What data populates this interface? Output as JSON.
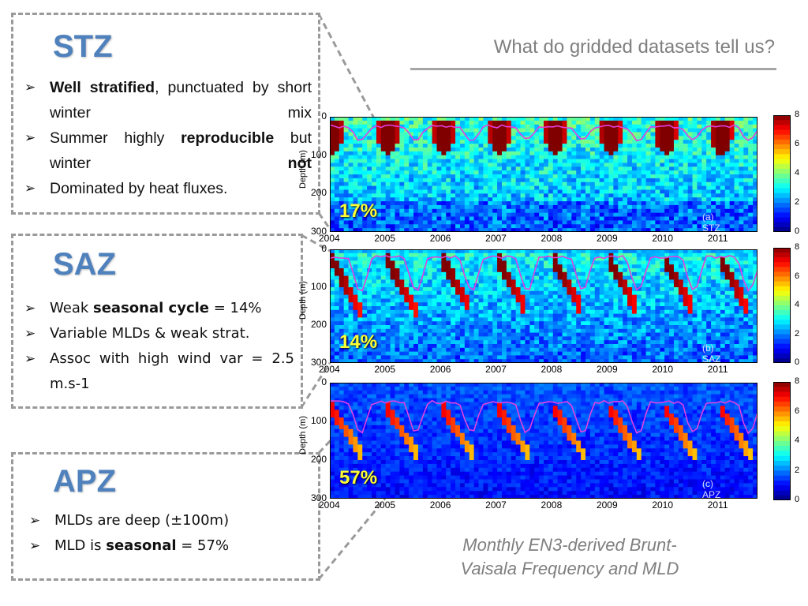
{
  "header": {
    "title": "What do gridded datasets tell us?"
  },
  "zones": [
    {
      "title": "STZ",
      "bullets": [
        {
          "parts": [
            {
              "text": "Well stratified",
              "bold": true
            },
            {
              "text": ", punctuated by short winter mix",
              "bold": false
            }
          ]
        },
        {
          "parts": [
            {
              "text": "Summer highly ",
              "bold": false
            },
            {
              "text": "reproducible",
              "bold": true
            },
            {
              "text": " but winter ",
              "bold": false
            },
            {
              "text": "not",
              "bold": true
            }
          ]
        },
        {
          "parts": [
            {
              "text": "Dominated by heat fluxes.",
              "bold": false
            }
          ]
        }
      ]
    },
    {
      "title": "SAZ",
      "bullets": [
        {
          "parts": [
            {
              "text": "Weak ",
              "bold": false
            },
            {
              "text": "seasonal cycle",
              "bold": true
            },
            {
              "text": " = 14%",
              "bold": false
            }
          ]
        },
        {
          "parts": [
            {
              "text": "Variable MLDs & weak strat.",
              "bold": false
            }
          ]
        },
        {
          "parts": [
            {
              "text": "Assoc with high wind var = 2.5 m.s-1",
              "bold": false
            }
          ]
        }
      ]
    },
    {
      "title": "APZ",
      "bullets": [
        {
          "parts": [
            {
              "text": "MLDs are deep (±100m)",
              "bold": false
            }
          ]
        },
        {
          "parts": [
            {
              "text": "MLD is ",
              "bold": false
            },
            {
              "text": "seasonal",
              "bold": true
            },
            {
              "text": " = 57%",
              "bold": false
            }
          ]
        }
      ]
    }
  ],
  "caption": {
    "line1": "Monthly EN3-derived Brunt-",
    "line2": "Vaisala Frequency and MLD"
  },
  "colors": {
    "accent": "#4f81bd",
    "percent_text": "#ffff33",
    "mld_line": "#e040e0",
    "dashes": "#9a9a9a"
  },
  "chart_data": [
    {
      "type": "heatmap",
      "panel_label": "(a) STZ",
      "highlight": "17%",
      "x_ticks": [
        "2004",
        "2005",
        "2006",
        "2007",
        "2008",
        "2009",
        "2010",
        "2011"
      ],
      "xlim": [
        2004,
        2011.7
      ],
      "ylabel": "Depth (m)",
      "y_ticks": [
        "0",
        "100",
        "200",
        "300"
      ],
      "ylim": [
        0,
        300
      ],
      "colorbar": {
        "ticks": [
          "0",
          "2",
          "4",
          "6",
          "8"
        ],
        "range": [
          0,
          8
        ]
      },
      "mld_depth_m": {
        "summer": 25,
        "winter": 60
      }
    },
    {
      "type": "heatmap",
      "panel_label": "(b) SAZ",
      "highlight": "14%",
      "x_ticks": [
        "2004",
        "2005",
        "2006",
        "2007",
        "2008",
        "2009",
        "2010",
        "2011"
      ],
      "xlim": [
        2004,
        2011.7
      ],
      "ylabel": "Depth (m)",
      "y_ticks": [
        "0",
        "100",
        "200",
        "300"
      ],
      "ylim": [
        0,
        300
      ],
      "colorbar": {
        "ticks": [
          "0",
          "2",
          "4",
          "6",
          "8"
        ],
        "range": [
          0,
          8
        ]
      },
      "mld_depth_m": {
        "summer": 20,
        "winter": 110
      }
    },
    {
      "type": "heatmap",
      "panel_label": "(c) APZ",
      "highlight": "57%",
      "x_ticks": [
        "2004",
        "2005",
        "2006",
        "2007",
        "2008",
        "2009",
        "2010",
        "2011"
      ],
      "xlim": [
        2004,
        2011.7
      ],
      "ylabel": "Depth (m)",
      "y_ticks": [
        "0",
        "100",
        "200",
        "300"
      ],
      "ylim": [
        0,
        300
      ],
      "colorbar": {
        "ticks": [
          "0",
          "2",
          "4",
          "6",
          "8"
        ],
        "range": [
          0,
          8
        ]
      },
      "mld_depth_m": {
        "summer": 50,
        "winter": 130
      }
    }
  ]
}
